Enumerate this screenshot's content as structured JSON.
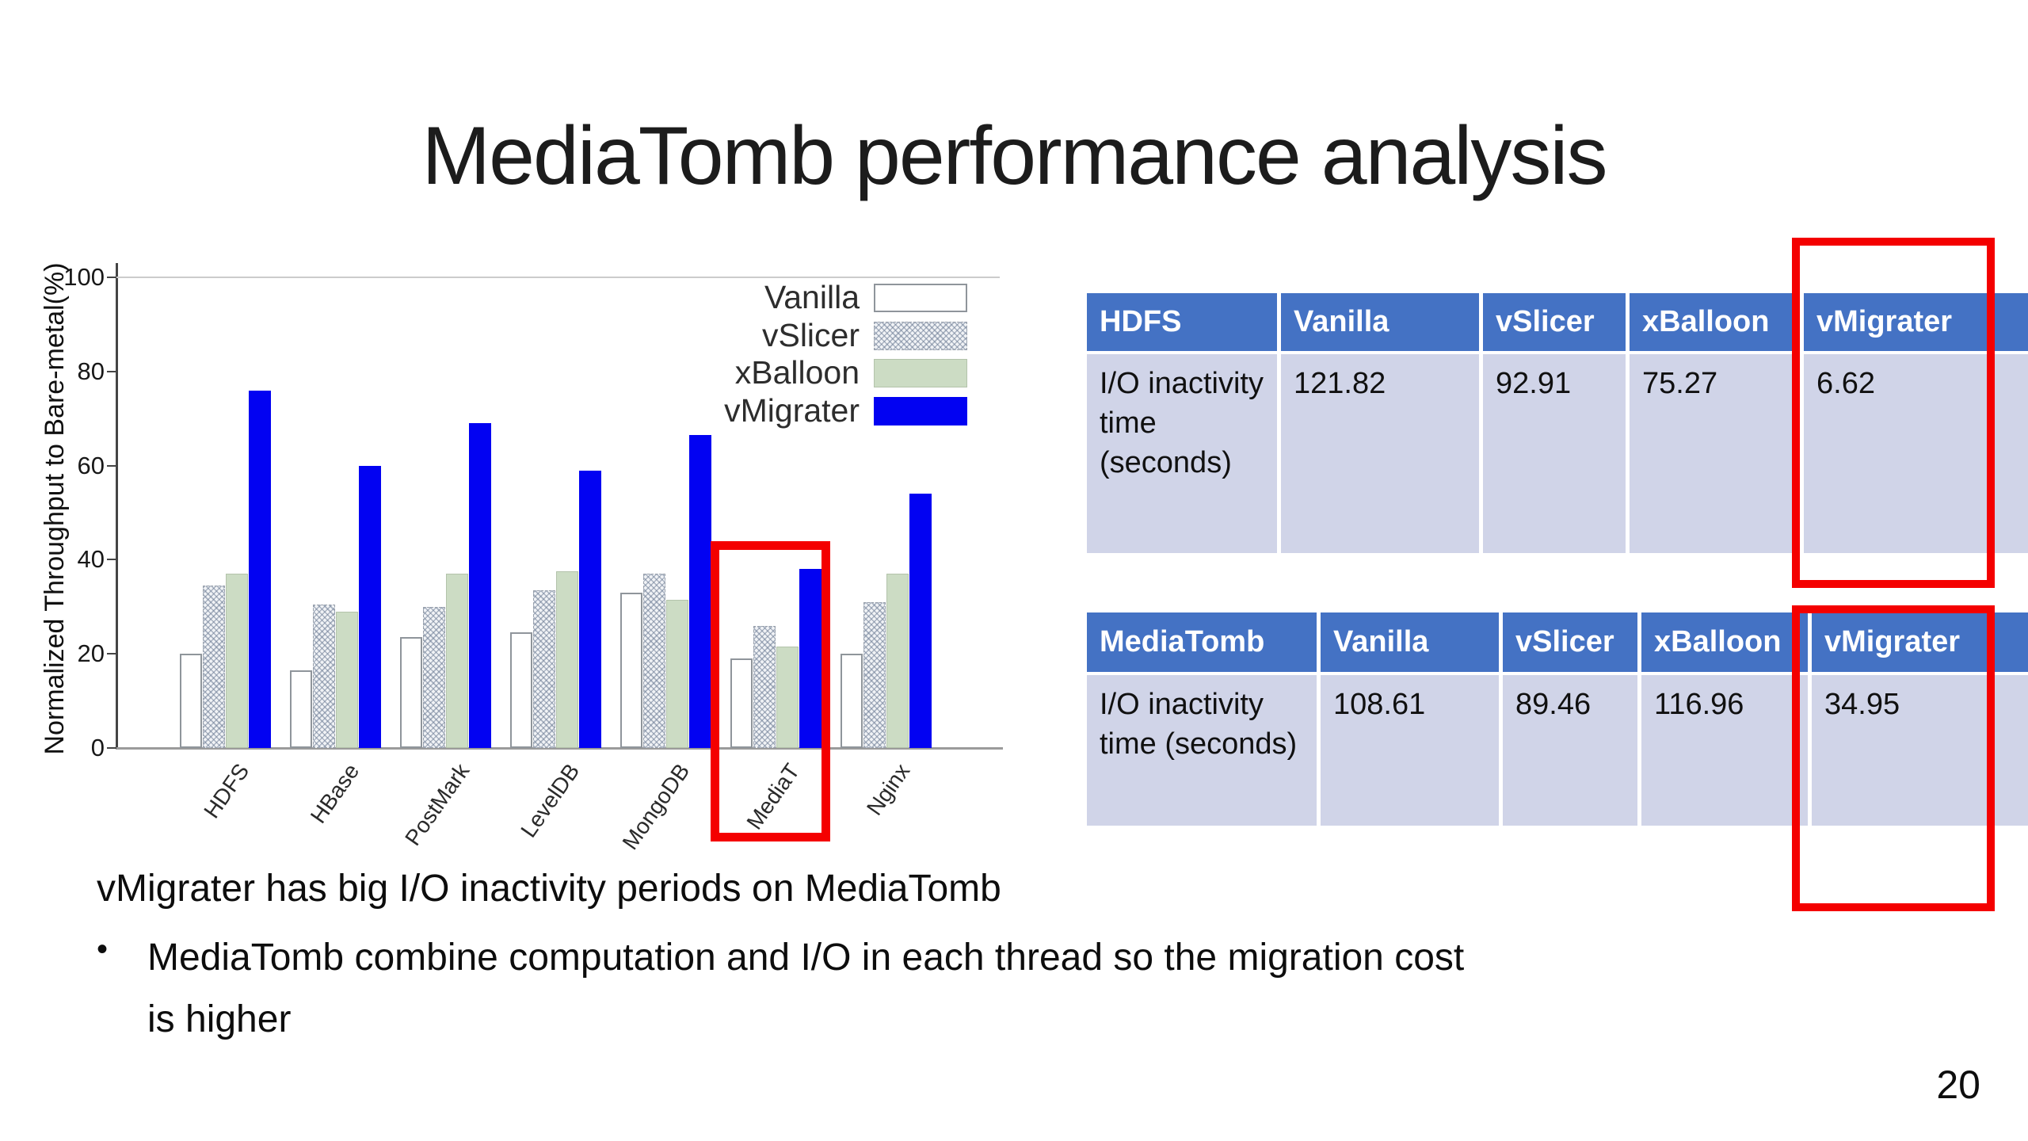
{
  "slide": {
    "title": "MediaTomb performance analysis",
    "page_number": "20"
  },
  "notes": {
    "line1": "vMigrater has big I/O inactivity periods on MediaTomb",
    "bullet_glyph": "•",
    "bullet_line1": "MediaTomb combine computation and I/O in each thread so the migration cost",
    "bullet_line2": "is higher"
  },
  "chart_data": {
    "type": "bar",
    "title": "",
    "xlabel": "",
    "ylabel": "Normalized Throughput to Bare-metal(%)",
    "ylim": [
      0,
      100
    ],
    "yticks": [
      0,
      20,
      40,
      60,
      80,
      100
    ],
    "grid": "single gridline at 100",
    "legend_position": "top-right inside plot",
    "categories": [
      "HDFS",
      "HBase",
      "PostMark",
      "LevelDB",
      "MongoDB",
      "MediaT",
      "Nginx"
    ],
    "series": [
      {
        "name": "Vanilla",
        "swatch": "vanilla",
        "values": [
          20,
          16.5,
          23.5,
          24.5,
          33,
          19,
          20
        ]
      },
      {
        "name": "vSlicer",
        "swatch": "crosshatch",
        "values": [
          34.5,
          30.5,
          30,
          33.5,
          37,
          26,
          31
        ]
      },
      {
        "name": "xBalloon",
        "swatch": "lightgreen",
        "values": [
          37,
          29,
          37,
          37.5,
          31.5,
          21.5,
          37
        ]
      },
      {
        "name": "vMigrater",
        "swatch": "blue",
        "values": [
          76,
          60,
          69,
          59,
          66.5,
          38,
          54
        ]
      }
    ],
    "annotation": "MediaT bar group is outlined with a red box"
  },
  "tables": [
    {
      "header": [
        "HDFS",
        "Vanilla",
        "vSlicer",
        "xBalloon",
        "vMigrater"
      ],
      "rows": [
        [
          "I/O inactivity time (seconds)",
          "121.82",
          "92.91",
          "75.27",
          "6.62"
        ]
      ],
      "highlight": "vMigrater column outlined in red"
    },
    {
      "header": [
        "MediaTomb",
        "Vanilla",
        "vSlicer",
        "xBalloon",
        "vMigrater"
      ],
      "rows": [
        [
          "I/O inactivity time (seconds)",
          "108.61",
          "89.46",
          "116.96",
          "34.95"
        ]
      ],
      "highlight": "vMigrater column outlined in red"
    }
  ],
  "colors": {
    "table_header_bg": "#4472c4",
    "table_row_bg": "#d0d4e8",
    "highlight_red": "#f40000",
    "bar_blue": "#0202f2",
    "bar_green": "#ccdcc4",
    "bar_hatch_bg": "#f1f3f6"
  }
}
